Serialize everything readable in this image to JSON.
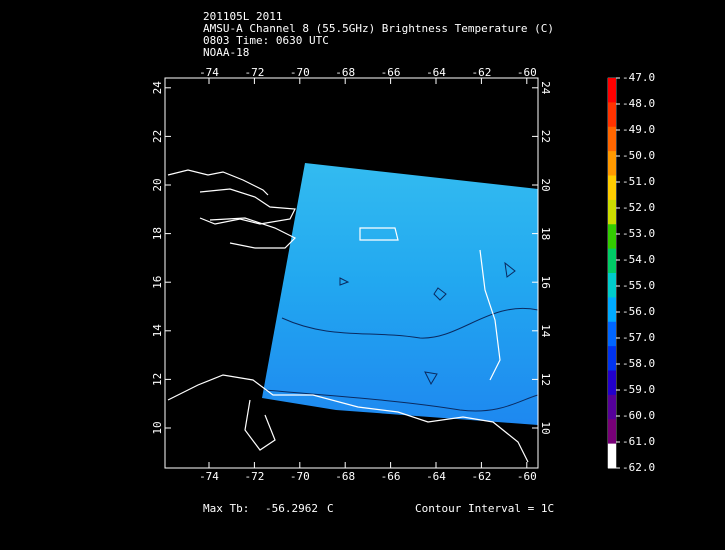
{
  "header": {
    "lines": [
      "201105L 2011",
      "AMSU-A Channel 8 (55.5GHz) Brightness Temperature (C)",
      "0803 Time: 0630 UTC",
      "NOAA-18"
    ]
  },
  "map": {
    "lon_labels": [
      "-74",
      "-72",
      "-70",
      "-68",
      "-66",
      "-64",
      "-62",
      "-60"
    ],
    "lat_labels": [
      "10",
      "12",
      "14",
      "16",
      "18",
      "20",
      "22",
      "24"
    ]
  },
  "colorbar": {
    "labels": [
      "-47.0",
      "-48.0",
      "-49.0",
      "-50.0",
      "-51.0",
      "-52.0",
      "-53.0",
      "-54.0",
      "-55.0",
      "-56.0",
      "-57.0",
      "-58.0",
      "-59.0",
      "-60.0",
      "-61.0",
      "-62.0"
    ],
    "colors": [
      "#ff0000",
      "#ff3300",
      "#ff6600",
      "#ff9900",
      "#ffcc00",
      "#ccdd00",
      "#33cc00",
      "#00cc66",
      "#00cccc",
      "#00aaff",
      "#0066ff",
      "#0033ee",
      "#2200cc",
      "#550099",
      "#770077",
      "#ffffff"
    ]
  },
  "footer": {
    "max_label": "Max Tb:",
    "max_value": "-56.2962",
    "unit": "C",
    "contour": "Contour Interval = 1C"
  }
}
